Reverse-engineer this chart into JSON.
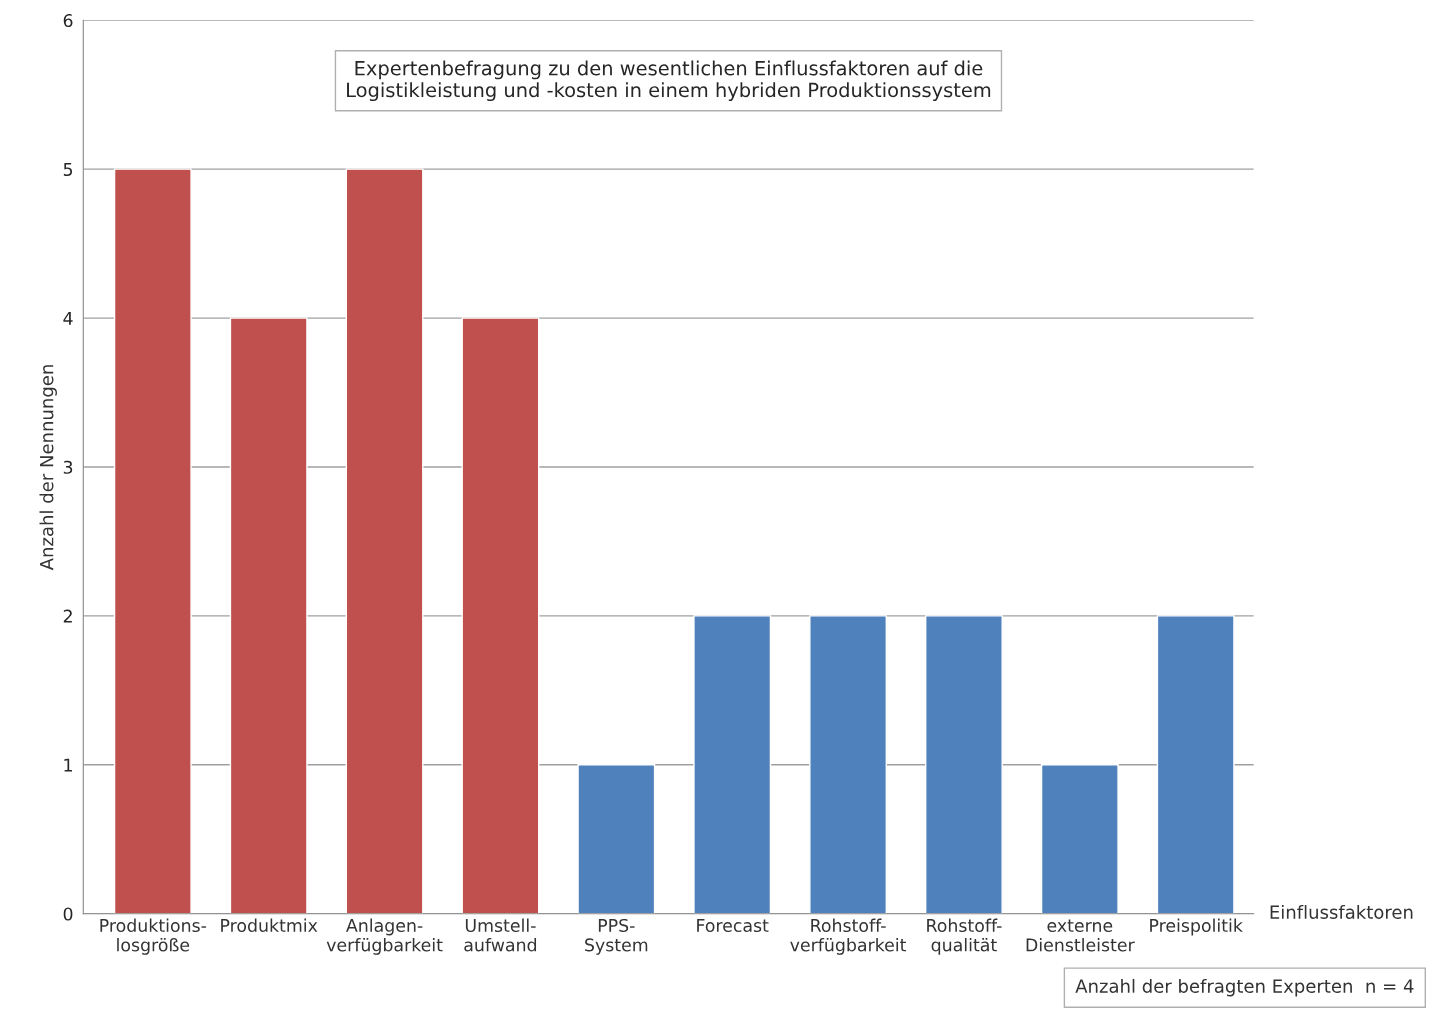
{
  "chart_data": {
    "type": "bar",
    "title": "Expertenbefragung zu den wesentlichen Einflussfaktoren auf die\nLogistikleistung und -kosten in einem hybriden Produktionssystem",
    "xlabel": "Einflussfaktoren",
    "ylabel": "Anzahl der Nennungen",
    "categories": [
      "Produktions-\nlosgröße",
      "Produktmix",
      "Anlagen-\nverfügbarkeit",
      "Umstell-\naufwand",
      "PPS-\nSystem",
      "Forecast",
      "Rohstoff-\nverfügbarkeit",
      "Rohstoff-\nqualität",
      "externe\nDienstleister",
      "Preispolitik"
    ],
    "values": [
      5,
      4,
      5,
      4,
      1,
      2,
      2,
      2,
      1,
      2
    ],
    "colors": [
      "#c0504d",
      "#c0504d",
      "#c0504d",
      "#c0504d",
      "#4f81bd",
      "#4f81bd",
      "#4f81bd",
      "#4f81bd",
      "#4f81bd",
      "#4f81bd"
    ],
    "ylim": [
      0,
      6
    ],
    "yticks": [
      0,
      1,
      2,
      3,
      4,
      5,
      6
    ],
    "grid": "y",
    "legend": false,
    "annotations": [
      "Anzahl der befragten Experten  n = 4"
    ]
  }
}
